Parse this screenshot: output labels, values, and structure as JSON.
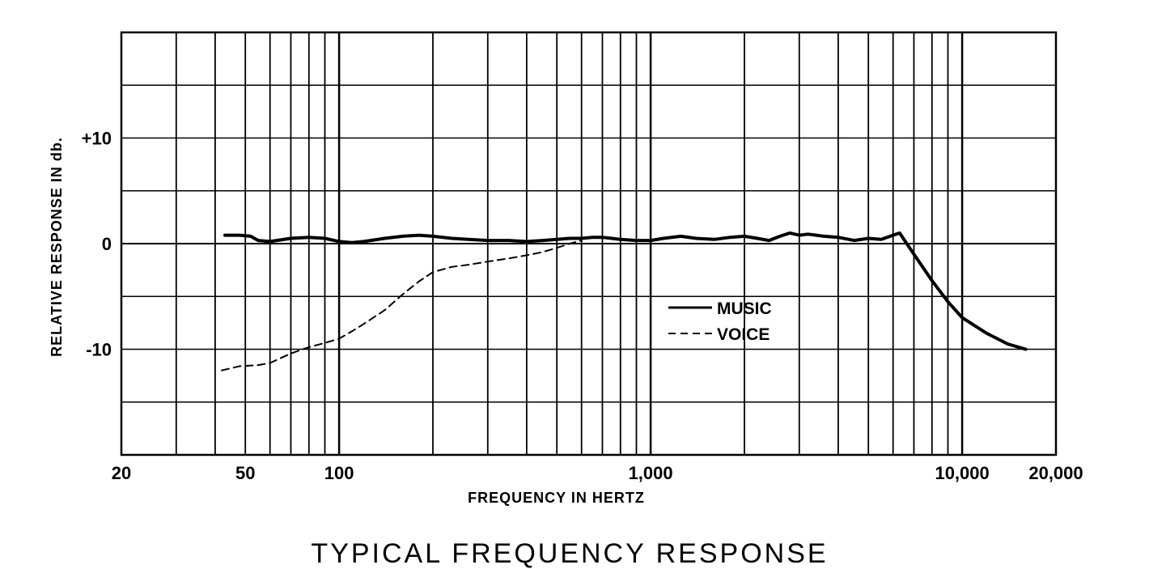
{
  "chart_data": {
    "type": "line",
    "title": "TYPICAL FREQUENCY RESPONSE",
    "xlabel": "FREQUENCY IN HERTZ",
    "ylabel": "RELATIVE RESPONSE IN db.",
    "x_scale": "log",
    "xlim": [
      20,
      20000
    ],
    "ylim": [
      -20,
      20
    ],
    "x_tick_labels": [
      {
        "value": 20,
        "label": "20"
      },
      {
        "value": 50,
        "label": "50"
      },
      {
        "value": 100,
        "label": "100"
      },
      {
        "value": 1000,
        "label": "1,000"
      },
      {
        "value": 10000,
        "label": "10,000"
      },
      {
        "value": 20000,
        "label": "20,000"
      }
    ],
    "y_tick_labels": [
      {
        "value": 10,
        "label": "+10"
      },
      {
        "value": 0,
        "label": "0"
      },
      {
        "value": -10,
        "label": "-10"
      }
    ],
    "grid": true,
    "legend_position": "center-right",
    "series": [
      {
        "name": "MUSIC",
        "style": "solid",
        "x": [
          43,
          48,
          52,
          55,
          60,
          70,
          80,
          90,
          100,
          110,
          120,
          140,
          160,
          180,
          200,
          230,
          260,
          300,
          350,
          400,
          450,
          500,
          550,
          600,
          650,
          700,
          750,
          800,
          900,
          1000,
          1100,
          1250,
          1400,
          1600,
          1800,
          2000,
          2200,
          2400,
          2600,
          2800,
          3000,
          3200,
          3400,
          3600,
          4000,
          4500,
          5000,
          5500,
          6000,
          6300,
          7000,
          8000,
          9000,
          10000,
          12000,
          14000,
          16000
        ],
        "y": [
          0.8,
          0.8,
          0.7,
          0.3,
          0.2,
          0.5,
          0.6,
          0.5,
          0.2,
          0.1,
          0.2,
          0.5,
          0.7,
          0.8,
          0.7,
          0.5,
          0.4,
          0.3,
          0.3,
          0.2,
          0.3,
          0.4,
          0.5,
          0.5,
          0.6,
          0.6,
          0.5,
          0.4,
          0.3,
          0.3,
          0.5,
          0.7,
          0.5,
          0.4,
          0.6,
          0.7,
          0.5,
          0.3,
          0.7,
          1.0,
          0.8,
          0.9,
          0.8,
          0.7,
          0.6,
          0.3,
          0.5,
          0.4,
          0.8,
          1.0,
          -1.0,
          -3.5,
          -5.5,
          -7.0,
          -8.5,
          -9.5,
          -10.0
        ]
      },
      {
        "name": "VOICE",
        "style": "dashed",
        "x": [
          42,
          48,
          55,
          60,
          70,
          80,
          90,
          100,
          110,
          120,
          140,
          160,
          180,
          200,
          230,
          260,
          300,
          350,
          400,
          450,
          500,
          550,
          600
        ],
        "y": [
          -12.0,
          -11.6,
          -11.5,
          -11.3,
          -10.4,
          -9.8,
          -9.4,
          -9.0,
          -8.3,
          -7.6,
          -6.3,
          -4.8,
          -3.6,
          -2.7,
          -2.2,
          -2.0,
          -1.7,
          -1.4,
          -1.1,
          -0.8,
          -0.4,
          0.0,
          0.3
        ]
      }
    ]
  }
}
